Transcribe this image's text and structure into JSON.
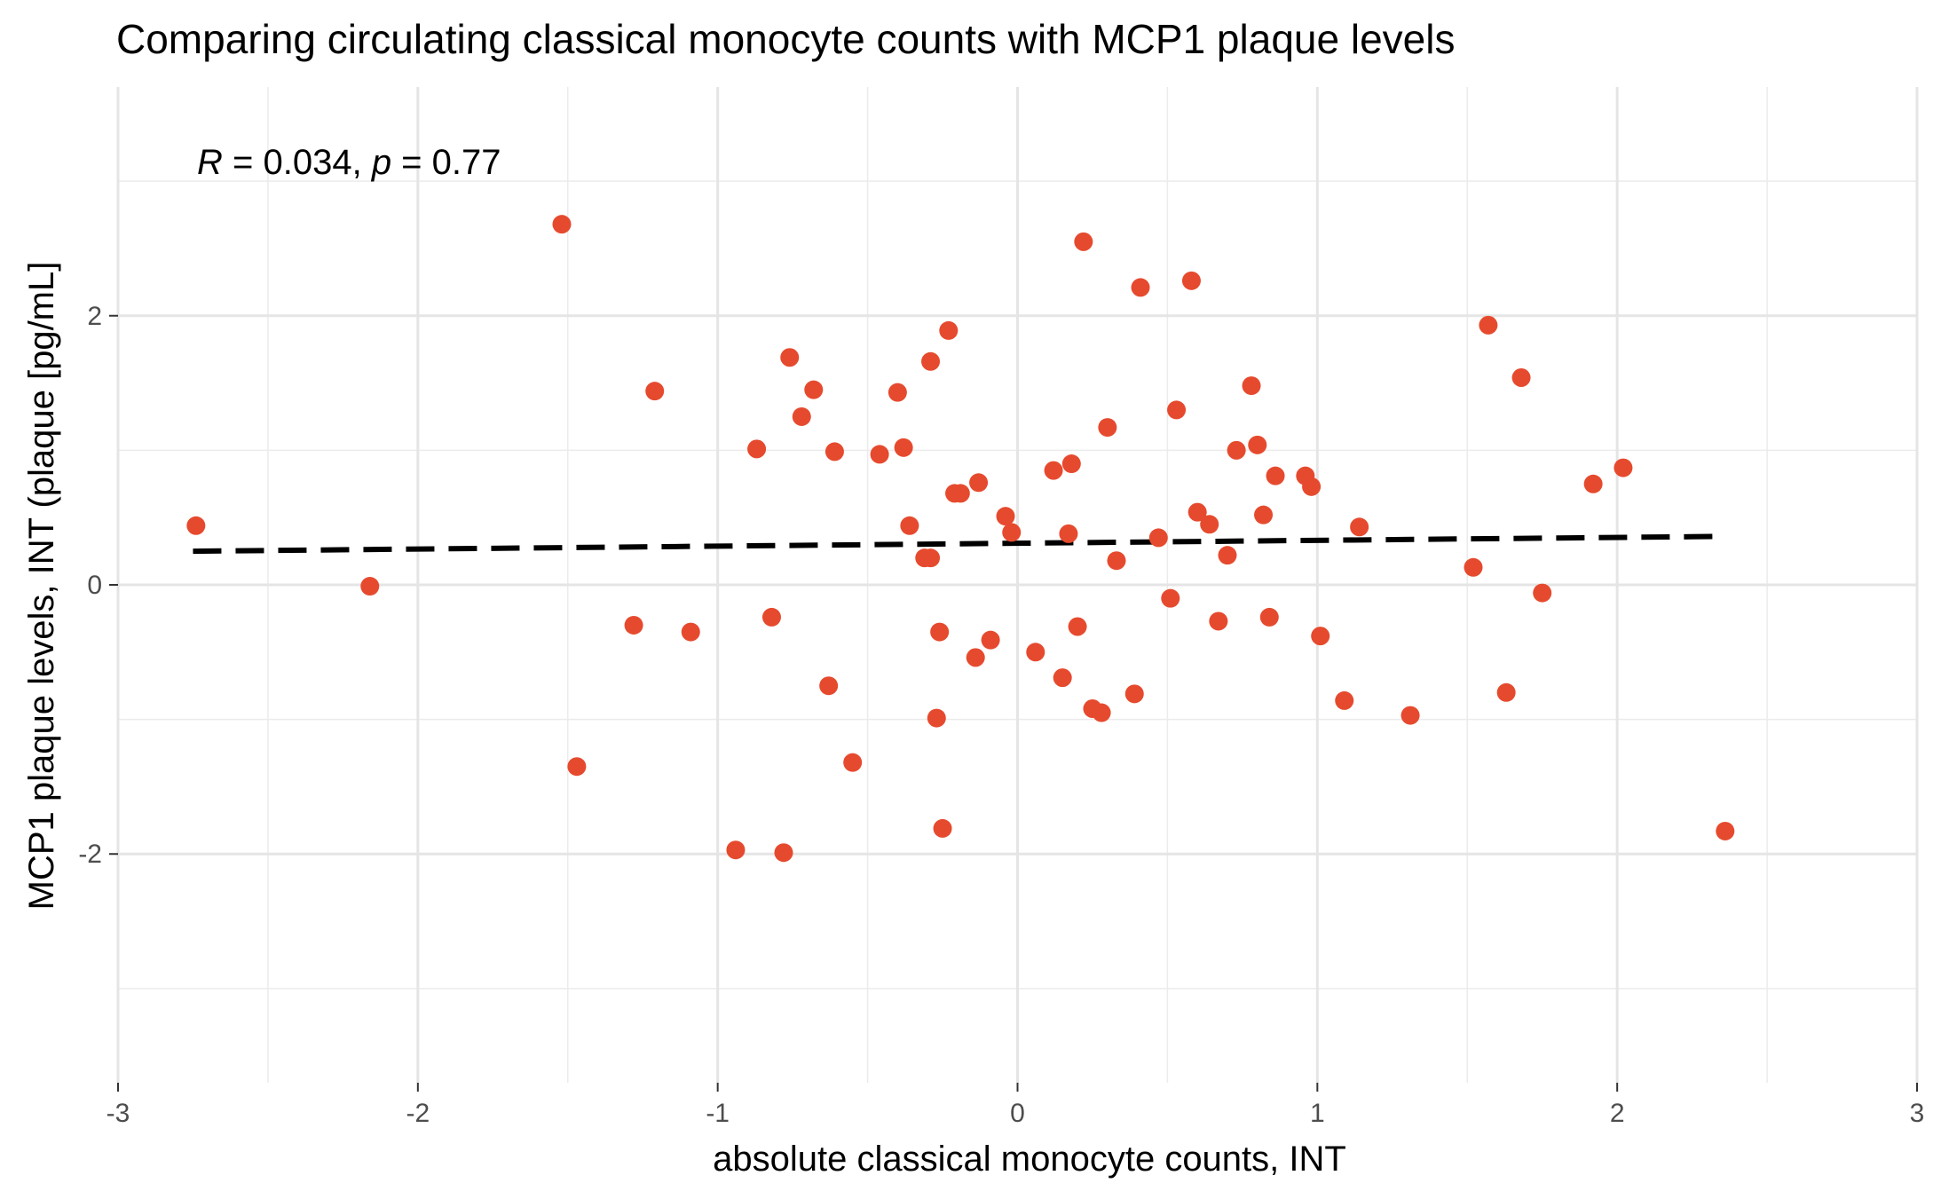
{
  "chart_data": {
    "type": "scatter",
    "title": "Comparing circulating classical monocyte counts with MCP1 plaque levels",
    "xlabel": "absolute classical monocyte counts, INT",
    "ylabel": "MCP1 plaque levels, INT (plaque [pg/mL]",
    "xlim": [
      -3,
      3
    ],
    "ylim": [
      -3.7,
      3.7
    ],
    "x_ticks": [
      -3,
      -2,
      -1,
      0,
      1,
      2,
      3
    ],
    "x_tick_labels": [
      "-3",
      "-2",
      "-1",
      "0",
      "1",
      "2",
      "3"
    ],
    "y_ticks": [
      -2,
      0,
      2
    ],
    "y_tick_labels": [
      "-2",
      "0",
      "2"
    ],
    "grid": true,
    "annotation": {
      "r_symbol": "R",
      "r_text": " = 0.034, ",
      "p_symbol": "p",
      "p_text": " = 0.77"
    },
    "point_color": "#E64A2E",
    "trend": {
      "style": "dashed",
      "color": "#000000",
      "x": [
        -2.75,
        2.35
      ],
      "y": [
        0.25,
        0.36
      ]
    },
    "points": [
      {
        "x": -2.74,
        "y": 0.44
      },
      {
        "x": -2.16,
        "y": -0.01
      },
      {
        "x": -1.52,
        "y": 2.68
      },
      {
        "x": -1.47,
        "y": -1.35
      },
      {
        "x": -1.28,
        "y": -0.3
      },
      {
        "x": -1.21,
        "y": 1.44
      },
      {
        "x": -1.09,
        "y": -0.35
      },
      {
        "x": -0.94,
        "y": -1.97
      },
      {
        "x": -0.87,
        "y": 1.01
      },
      {
        "x": -0.82,
        "y": -0.24
      },
      {
        "x": -0.78,
        "y": -1.99
      },
      {
        "x": -0.76,
        "y": 1.69
      },
      {
        "x": -0.72,
        "y": 1.25
      },
      {
        "x": -0.68,
        "y": 1.45
      },
      {
        "x": -0.63,
        "y": -0.75
      },
      {
        "x": -0.61,
        "y": 0.99
      },
      {
        "x": -0.55,
        "y": -1.32
      },
      {
        "x": -0.46,
        "y": 0.97
      },
      {
        "x": -0.4,
        "y": 1.43
      },
      {
        "x": -0.38,
        "y": 1.02
      },
      {
        "x": -0.36,
        "y": 0.44
      },
      {
        "x": -0.31,
        "y": 0.2
      },
      {
        "x": -0.29,
        "y": 0.2
      },
      {
        "x": -0.29,
        "y": 1.66
      },
      {
        "x": -0.27,
        "y": -0.99
      },
      {
        "x": -0.26,
        "y": -0.35
      },
      {
        "x": -0.25,
        "y": -1.81
      },
      {
        "x": -0.23,
        "y": 1.89
      },
      {
        "x": -0.21,
        "y": 0.68
      },
      {
        "x": -0.19,
        "y": 0.68
      },
      {
        "x": -0.14,
        "y": -0.54
      },
      {
        "x": -0.13,
        "y": 0.76
      },
      {
        "x": -0.09,
        "y": -0.41
      },
      {
        "x": -0.04,
        "y": 0.51
      },
      {
        "x": -0.02,
        "y": 0.39
      },
      {
        "x": 0.06,
        "y": -0.5
      },
      {
        "x": 0.12,
        "y": 0.85
      },
      {
        "x": 0.15,
        "y": -0.69
      },
      {
        "x": 0.17,
        "y": 0.38
      },
      {
        "x": 0.18,
        "y": 0.9
      },
      {
        "x": 0.2,
        "y": -0.31
      },
      {
        "x": 0.22,
        "y": 2.55
      },
      {
        "x": 0.25,
        "y": -0.92
      },
      {
        "x": 0.28,
        "y": -0.95
      },
      {
        "x": 0.3,
        "y": 1.17
      },
      {
        "x": 0.33,
        "y": 0.18
      },
      {
        "x": 0.39,
        "y": -0.81
      },
      {
        "x": 0.41,
        "y": 2.21
      },
      {
        "x": 0.47,
        "y": 0.35
      },
      {
        "x": 0.51,
        "y": -0.1
      },
      {
        "x": 0.53,
        "y": 1.3
      },
      {
        "x": 0.58,
        "y": 2.26
      },
      {
        "x": 0.6,
        "y": 0.54
      },
      {
        "x": 0.64,
        "y": 0.45
      },
      {
        "x": 0.67,
        "y": -0.27
      },
      {
        "x": 0.7,
        "y": 0.22
      },
      {
        "x": 0.73,
        "y": 1.0
      },
      {
        "x": 0.78,
        "y": 1.48
      },
      {
        "x": 0.8,
        "y": 1.04
      },
      {
        "x": 0.82,
        "y": 0.52
      },
      {
        "x": 0.84,
        "y": -0.24
      },
      {
        "x": 0.86,
        "y": 0.81
      },
      {
        "x": 0.96,
        "y": 0.81
      },
      {
        "x": 0.98,
        "y": 0.73
      },
      {
        "x": 1.01,
        "y": -0.38
      },
      {
        "x": 1.09,
        "y": -0.86
      },
      {
        "x": 1.14,
        "y": 0.43
      },
      {
        "x": 1.31,
        "y": -0.97
      },
      {
        "x": 1.52,
        "y": 0.13
      },
      {
        "x": 1.57,
        "y": 1.93
      },
      {
        "x": 1.63,
        "y": -0.8
      },
      {
        "x": 1.68,
        "y": 1.54
      },
      {
        "x": 1.75,
        "y": -0.06
      },
      {
        "x": 1.92,
        "y": 0.75
      },
      {
        "x": 2.02,
        "y": 0.87
      },
      {
        "x": 2.36,
        "y": -1.83
      }
    ]
  }
}
